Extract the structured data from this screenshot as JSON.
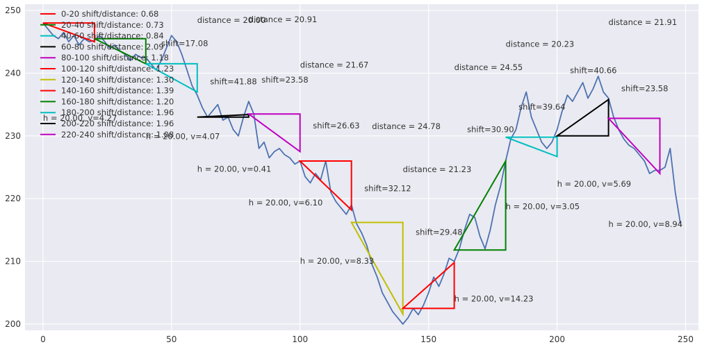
{
  "chart_data": {
    "type": "line",
    "style": "seaborn-darkgrid",
    "background": "#eaeaf2",
    "grid": true,
    "legend_position": "top-left",
    "xlim": [
      -7,
      255
    ],
    "ylim": [
      199,
      251
    ],
    "x_ticks": [
      0,
      50,
      100,
      150,
      200,
      250
    ],
    "y_ticks": [
      200,
      210,
      220,
      230,
      240,
      250
    ],
    "price_series": {
      "color": "#4c72b0",
      "x": [
        0,
        2,
        4,
        6,
        8,
        10,
        12,
        14,
        16,
        18,
        20,
        22,
        24,
        26,
        28,
        30,
        32,
        34,
        36,
        38,
        40,
        42,
        44,
        46,
        48,
        50,
        52,
        54,
        56,
        58,
        60,
        62,
        64,
        66,
        68,
        70,
        72,
        74,
        76,
        78,
        80,
        82,
        84,
        86,
        88,
        90,
        92,
        94,
        96,
        98,
        100,
        102,
        104,
        106,
        108,
        110,
        112,
        114,
        116,
        118,
        120,
        122,
        124,
        126,
        128,
        130,
        132,
        134,
        136,
        138,
        140,
        142,
        144,
        146,
        148,
        150,
        152,
        154,
        156,
        158,
        160,
        162,
        164,
        166,
        168,
        170,
        172,
        174,
        176,
        178,
        180,
        182,
        184,
        186,
        188,
        190,
        192,
        194,
        196,
        198,
        200,
        202,
        204,
        206,
        208,
        210,
        212,
        214,
        216,
        218,
        220,
        222,
        224,
        226,
        228,
        230,
        232,
        234,
        236,
        238,
        240,
        242,
        244,
        246,
        248
      ],
      "y": [
        248.0,
        247.0,
        246.0,
        245.5,
        246.5,
        245.0,
        246.0,
        244.5,
        245.5,
        245.0,
        245.2,
        246.0,
        245.0,
        244.0,
        244.5,
        243.5,
        243.0,
        242.0,
        243.0,
        242.5,
        242.5,
        241.5,
        240.5,
        242.0,
        244.0,
        246.0,
        245.0,
        243.0,
        240.5,
        238.0,
        236.5,
        234.5,
        233.0,
        234.0,
        235.0,
        232.5,
        233.0,
        231.0,
        230.0,
        233.0,
        235.5,
        233.5,
        228.0,
        229.0,
        226.5,
        227.5,
        228.0,
        227.0,
        226.5,
        225.5,
        226.0,
        223.5,
        222.5,
        224.0,
        223.0,
        226.0,
        221.0,
        219.5,
        218.5,
        217.5,
        219.0,
        216.0,
        214.5,
        212.5,
        209.5,
        207.5,
        205.0,
        203.5,
        202.0,
        201.0,
        200.0,
        201.0,
        202.5,
        201.5,
        203.0,
        205.0,
        207.5,
        206.0,
        208.0,
        210.5,
        210.0,
        212.0,
        215.0,
        217.5,
        217.0,
        214.0,
        212.0,
        215.0,
        219.0,
        222.0,
        226.0,
        229.5,
        231.0,
        234.5,
        237.0,
        233.0,
        231.0,
        229.0,
        228.0,
        229.0,
        231.0,
        234.0,
        236.5,
        235.5,
        237.0,
        238.5,
        236.0,
        237.5,
        239.5,
        237.0,
        236.0,
        233.0,
        231.0,
        229.5,
        228.5,
        228.0,
        227.0,
        226.0,
        224.0,
        224.5,
        224.5,
        225.0,
        228.0,
        221.0,
        216.0
      ]
    },
    "legend": [
      {
        "label": "0-20 shift/distance: 0.68",
        "color": "#ff0000"
      },
      {
        "label": "20-40 shift/distance: 0.73",
        "color": "#008000"
      },
      {
        "label": "40-60 shift/distance: 0.84",
        "color": "#00bfbf"
      },
      {
        "label": "60-80 shift/distance: 2.09",
        "color": "#000000"
      },
      {
        "label": "80-100 shift/distance: 1.18",
        "color": "#bf00bf"
      },
      {
        "label": "100-120 shift/distance: 1.23",
        "color": "#ff0000"
      },
      {
        "label": "120-140 shift/distance: 1.30",
        "color": "#bfbf00"
      },
      {
        "label": "140-160 shift/distance: 1.39",
        "color": "#ff0000"
      },
      {
        "label": "160-180 shift/distance: 1.20",
        "color": "#008000"
      },
      {
        "label": "180-200 shift/distance: 1.96",
        "color": "#00bfbf"
      },
      {
        "label": "200-220 shift/distance: 1.96",
        "color": "#000000"
      },
      {
        "label": "220-240 shift/distance: 1.08",
        "color": "#bf00bf"
      }
    ],
    "triangles": [
      {
        "x0": 0,
        "x1": 20,
        "y_start": 248.0,
        "y_end": 245.0,
        "color": "#ff0000"
      },
      {
        "x0": 20,
        "x1": 40,
        "y_start": 245.5,
        "y_end": 241.5,
        "color": "#008000"
      },
      {
        "x0": 40,
        "x1": 60,
        "y_start": 241.5,
        "y_end": 237.0,
        "color": "#00bfbf"
      },
      {
        "x0": 60,
        "x1": 80,
        "y_start": 233.0,
        "y_end": 233.4,
        "color": "#000000"
      },
      {
        "x0": 80,
        "x1": 100,
        "y_start": 233.5,
        "y_end": 227.5,
        "color": "#bf00bf"
      },
      {
        "x0": 100,
        "x1": 120,
        "y_start": 226.0,
        "y_end": 218.2,
        "color": "#ff0000"
      },
      {
        "x0": 120,
        "x1": 140,
        "y_start": 216.2,
        "y_end": 201.6,
        "color": "#bfbf00"
      },
      {
        "x0": 140,
        "x1": 160,
        "y_start": 202.5,
        "y_end": 209.8,
        "color": "#ff0000"
      },
      {
        "x0": 160,
        "x1": 180,
        "y_start": 211.8,
        "y_end": 226.0,
        "color": "#008000"
      },
      {
        "x0": 180,
        "x1": 200,
        "y_start": 229.8,
        "y_end": 226.7,
        "color": "#00bfbf"
      },
      {
        "x0": 200,
        "x1": 220,
        "y_start": 230.0,
        "y_end": 235.8,
        "color": "#000000"
      },
      {
        "x0": 220,
        "x1": 240,
        "y_start": 232.8,
        "y_end": 224.0,
        "color": "#bf00bf"
      }
    ],
    "annotations": [
      {
        "text": "shift=17.08",
        "x": 46,
        "y": 244.3
      },
      {
        "text": "distance = 20.00",
        "x": 60,
        "y": 248.0
      },
      {
        "text": "distance = 20.91",
        "x": 80,
        "y": 248.1
      },
      {
        "text": "shift=41.88",
        "x": 65,
        "y": 238.2
      },
      {
        "text": "shift=23.58",
        "x": 85,
        "y": 238.5
      },
      {
        "text": "distance = 21.67",
        "x": 100,
        "y": 240.9
      },
      {
        "text": "h = 20.00, v=4.27",
        "x": 0,
        "y": 232.4
      },
      {
        "text": "h = 20.00, v=4.07",
        "x": 40,
        "y": 229.5
      },
      {
        "text": "h = 20.00, v=0.41",
        "x": 60,
        "y": 224.3
      },
      {
        "text": "shift=26.63",
        "x": 105,
        "y": 231.2
      },
      {
        "text": "distance = 24.78",
        "x": 128,
        "y": 231.1
      },
      {
        "text": "h = 20.00, v=6.10",
        "x": 80,
        "y": 218.9
      },
      {
        "text": "shift=32.12",
        "x": 125,
        "y": 221.2
      },
      {
        "text": "h = 20.00, v=8.33",
        "x": 100,
        "y": 209.6
      },
      {
        "text": "distance = 21.23",
        "x": 140,
        "y": 224.2
      },
      {
        "text": "shift=29.48",
        "x": 145,
        "y": 214.2
      },
      {
        "text": "h = 20.00, v=14.23",
        "x": 160,
        "y": 203.6
      },
      {
        "text": "distance = 24.55",
        "x": 160,
        "y": 240.5
      },
      {
        "text": "distance = 20.23",
        "x": 180,
        "y": 244.2
      },
      {
        "text": "shift=39.64",
        "x": 185,
        "y": 234.2
      },
      {
        "text": "shift=30.90",
        "x": 165,
        "y": 230.6
      },
      {
        "text": "h = 20.00, v=3.05",
        "x": 180,
        "y": 218.3
      },
      {
        "text": "shift=40.66",
        "x": 205,
        "y": 240.0
      },
      {
        "text": "shift=23.58",
        "x": 225,
        "y": 237.1
      },
      {
        "text": "h = 20.00, v=5.69",
        "x": 200,
        "y": 221.9
      },
      {
        "text": "distance = 21.91",
        "x": 220,
        "y": 247.7
      },
      {
        "text": "h = 20.00, v=8.94",
        "x": 220,
        "y": 215.5
      }
    ]
  }
}
